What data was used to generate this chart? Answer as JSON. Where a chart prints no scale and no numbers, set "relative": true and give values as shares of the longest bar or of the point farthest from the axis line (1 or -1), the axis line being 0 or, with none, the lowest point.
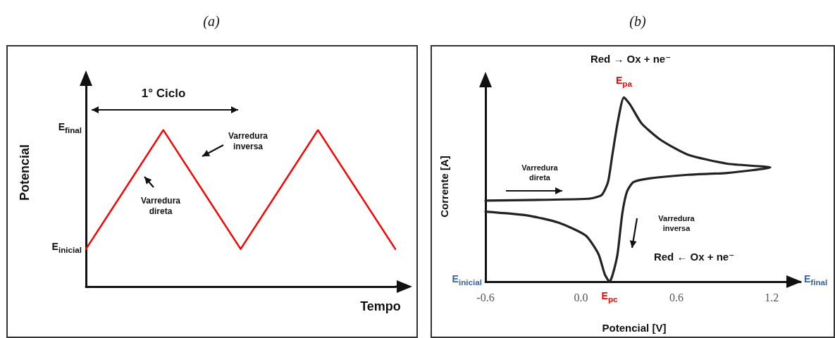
{
  "chart_data": [
    {
      "type": "line",
      "title": "(a)",
      "xlabel": "Tempo",
      "ylabel": "Potencial",
      "relative": true,
      "marker": "none",
      "categories": [
        null,
        null,
        null,
        null,
        null
      ],
      "series": [
        {
          "color": "#ff0000",
          "values": [
            0.24,
            1,
            0.24,
            1,
            0.24
          ]
        }
      ],
      "annotations": [
        "1° Ciclo",
        "Varredura\ninversa",
        "Varredura\ndireta",
        "E$_{final}$",
        "E$_{inicial}$"
      ]
    },
    {
      "type": "line",
      "title": "(b)",
      "xlabel": "Potencial [V]",
      "ylabel": "Corrente [A]",
      "relative": true,
      "marker": "none",
      "xlim": [
        -0.6,
        1.38
      ],
      "xticks": [
        -0.6,
        {
          "value": 0,
          "label": "0.0"
        },
        0.6,
        1.2
      ],
      "series": [
        {
          "color": "#222222",
          "x": [
            -0.6,
            0.045,
            0.13,
            0.17,
            0.196,
            0.23,
            0.27,
            0.31,
            0.38,
            0.5,
            0.67,
            0.92,
            1.19,
            0.92,
            0.67,
            0.43,
            0.33,
            0.29,
            0.26,
            0.23,
            0.2,
            0.18,
            0.15,
            0.11,
            0.03,
            -0.14,
            -0.34,
            -0.6
          ],
          "values": [
            0.44,
            0.45,
            0.47,
            0.54,
            0.68,
            0.86,
            1,
            0.96,
            0.86,
            0.77,
            0.69,
            0.64,
            0.62,
            0.59,
            0.58,
            0.56,
            0.54,
            0.49,
            0.37,
            0.15,
            0.04,
            0,
            0.04,
            0.15,
            0.25,
            0.32,
            0.36,
            0.38
          ]
        }
      ],
      "annotations": [
        "Red → Ox + ne⁻",
        "Varredura\ndireta",
        "Varredura\ninversa",
        "Red ← Ox + ne⁻",
        {
          "text": "E$_{pa}$",
          "x": 0.27,
          "y": 1
        },
        {
          "text": "E$_{pc}$",
          "x": 0.18,
          "y": 0
        },
        "E$_{inicial}$",
        "E$_{final}$"
      ]
    }
  ]
}
